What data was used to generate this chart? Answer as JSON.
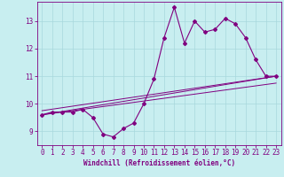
{
  "xlabel": "Windchill (Refroidissement éolien,°C)",
  "bg_color": "#c8eef0",
  "line_color": "#800080",
  "grid_color": "#a8d8dc",
  "xlim": [
    -0.5,
    23.5
  ],
  "ylim": [
    8.5,
    13.7
  ],
  "yticks": [
    9,
    10,
    11,
    12,
    13
  ],
  "xticks": [
    0,
    1,
    2,
    3,
    4,
    5,
    6,
    7,
    8,
    9,
    10,
    11,
    12,
    13,
    14,
    15,
    16,
    17,
    18,
    19,
    20,
    21,
    22,
    23
  ],
  "main_x": [
    0,
    1,
    2,
    3,
    4,
    5,
    6,
    7,
    8,
    9,
    10,
    11,
    12,
    13,
    14,
    15,
    16,
    17,
    18,
    19,
    20,
    21,
    22,
    23
  ],
  "main_y": [
    9.6,
    9.7,
    9.7,
    9.7,
    9.8,
    9.5,
    8.9,
    8.8,
    9.1,
    9.3,
    10.0,
    10.9,
    12.4,
    13.5,
    12.2,
    13.0,
    12.6,
    12.7,
    13.1,
    12.9,
    12.4,
    11.6,
    11.0,
    11.0
  ],
  "line2_x": [
    0,
    23
  ],
  "line2_y": [
    9.6,
    11.0
  ],
  "line3_x": [
    0,
    23
  ],
  "line3_y": [
    9.6,
    11.0
  ],
  "line4_x": [
    0,
    23
  ],
  "line4_y": [
    9.75,
    11.0
  ],
  "line5_x": [
    0,
    23
  ],
  "line5_y": [
    9.6,
    10.75
  ],
  "tick_fontsize": 5.5,
  "xlabel_fontsize": 5.5
}
